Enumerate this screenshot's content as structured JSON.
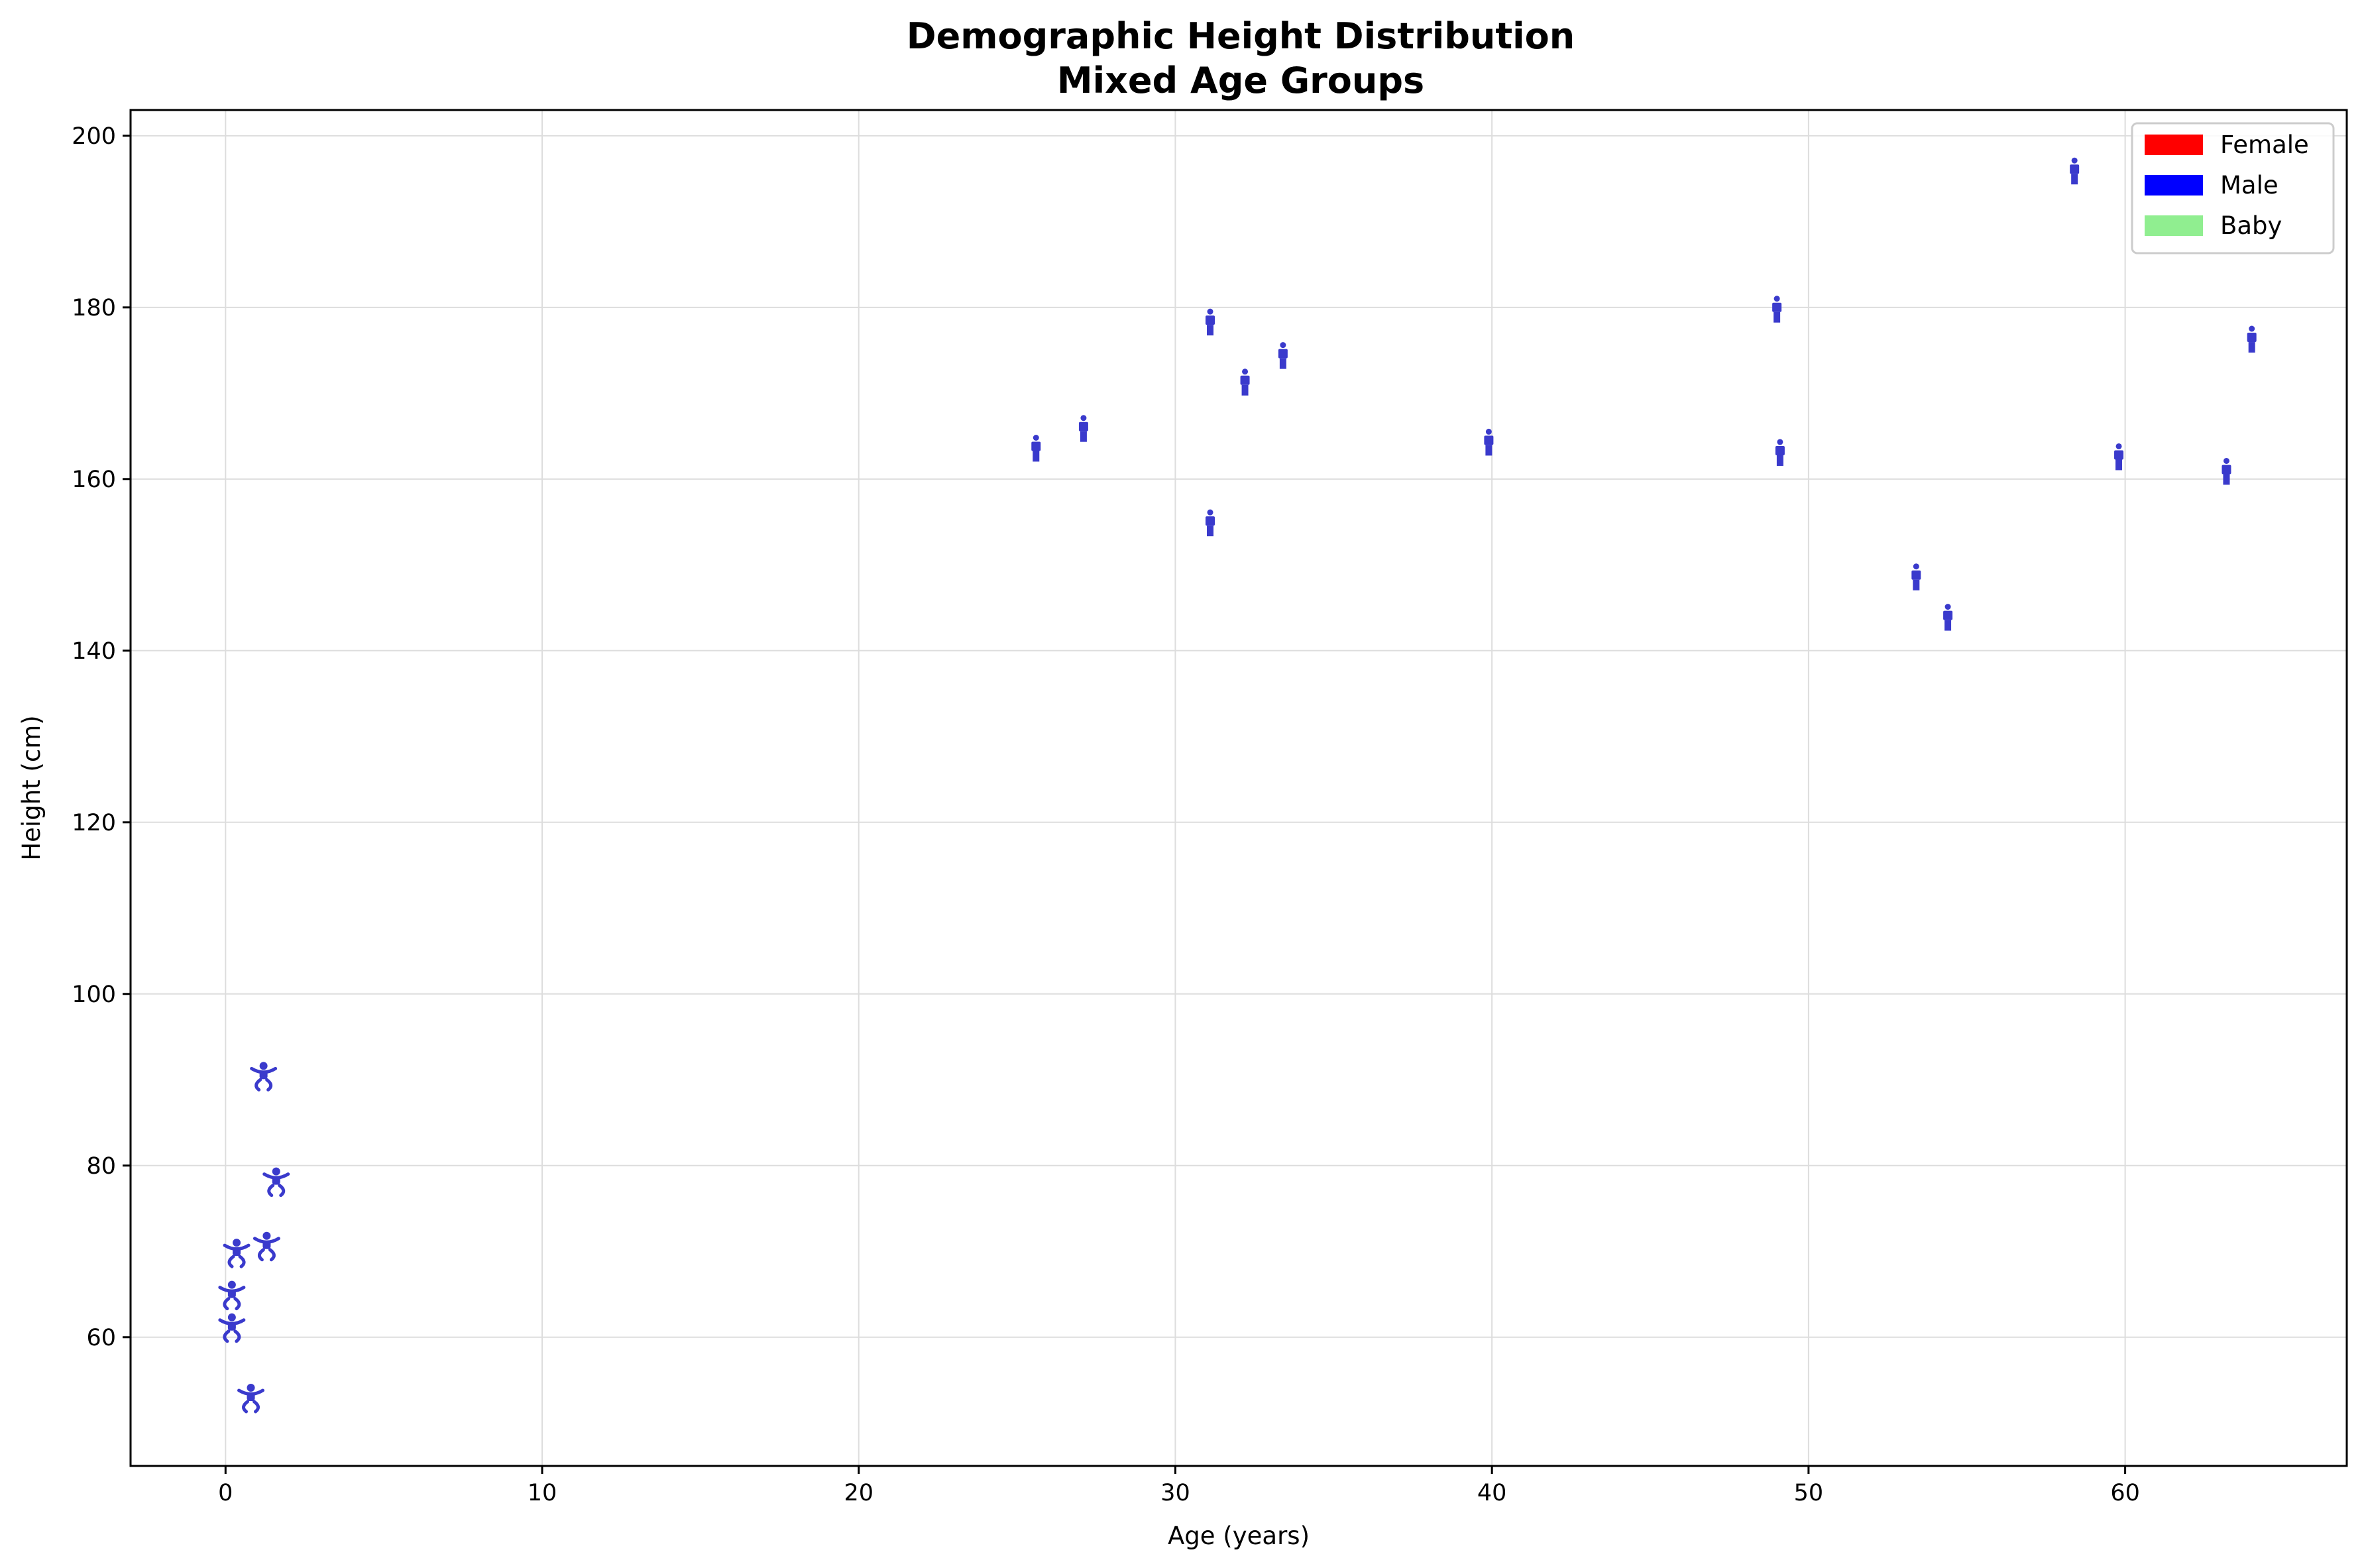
{
  "chart_data": {
    "type": "scatter",
    "title": "Demographic Height Distribution",
    "subtitle": "Mixed Age Groups",
    "xlabel": "Age (years)",
    "ylabel": "Height (cm)",
    "xlim": [
      -3,
      67
    ],
    "ylim": [
      45,
      203
    ],
    "xticks": [
      0,
      10,
      20,
      30,
      40,
      50,
      60
    ],
    "yticks": [
      60,
      80,
      100,
      120,
      140,
      160,
      180,
      200
    ],
    "grid": true,
    "legend_position": "top-right",
    "legend": [
      {
        "label": "Female",
        "color": "#ff0000"
      },
      {
        "label": "Male",
        "color": "#0000ff"
      },
      {
        "label": "Baby",
        "color": "#90ee90"
      }
    ],
    "marker_color": "#3a3acc",
    "babies": [
      {
        "age": 0.2,
        "height": 61
      },
      {
        "age": 0.2,
        "height": 64.8
      },
      {
        "age": 0.35,
        "height": 69.7
      },
      {
        "age": 0.8,
        "height": 52.8
      },
      {
        "age": 1.2,
        "height": 90.3
      },
      {
        "age": 1.3,
        "height": 70.5
      },
      {
        "age": 1.6,
        "height": 78
      }
    ],
    "adults": [
      {
        "age": 25.6,
        "height": 163.5
      },
      {
        "age": 27.1,
        "height": 165.8
      },
      {
        "age": 31.1,
        "height": 178.2
      },
      {
        "age": 31.1,
        "height": 154.8
      },
      {
        "age": 32.2,
        "height": 171.2
      },
      {
        "age": 33.4,
        "height": 174.3
      },
      {
        "age": 39.9,
        "height": 164.2
      },
      {
        "age": 49.0,
        "height": 179.7
      },
      {
        "age": 49.1,
        "height": 163
      },
      {
        "age": 53.4,
        "height": 148.5
      },
      {
        "age": 54.4,
        "height": 143.8
      },
      {
        "age": 58.4,
        "height": 195.8
      },
      {
        "age": 59.8,
        "height": 162.5
      },
      {
        "age": 63.2,
        "height": 160.8
      },
      {
        "age": 64.0,
        "height": 176.2
      }
    ]
  }
}
